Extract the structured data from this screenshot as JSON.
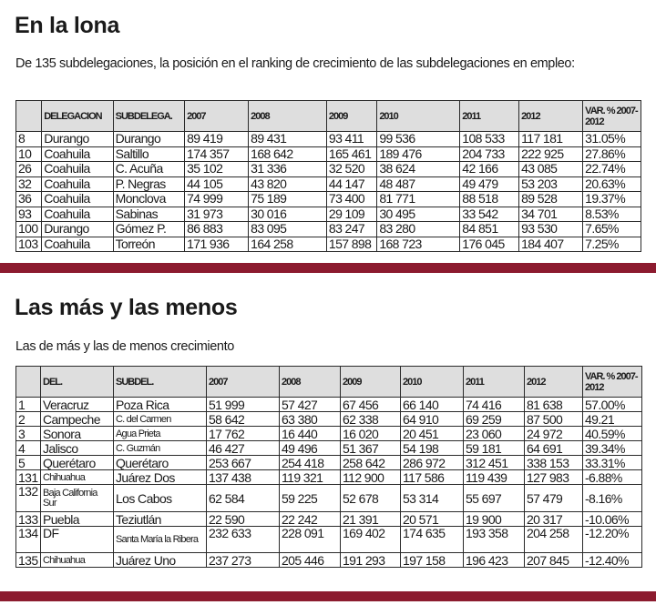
{
  "section1": {
    "title": "En la lona",
    "subtitle": "De 135 subdelegaciones, la posición en el ranking de crecimiento de las subdelegaciones en empleo:",
    "headers": [
      "",
      "DELEGACION",
      "SUBDELEGA.",
      "2007",
      "2008",
      "2009",
      "2010",
      "2011",
      "2012",
      "VAR. % 2007-2012"
    ],
    "rows": [
      [
        "8",
        "Durango",
        "Durango",
        "89 419",
        "89 431",
        "93 411",
        "99 536",
        "108 533",
        "117 181",
        "31.05%"
      ],
      [
        "10",
        "Coahuila",
        "Saltillo",
        "174 357",
        "168 642",
        "165 461",
        "189 476",
        "204 733",
        "222 925",
        "27.86%"
      ],
      [
        "26",
        "Coahuila",
        "C. Acuña",
        "35 102",
        "31 336",
        "32 520",
        "38 624",
        "42 166",
        "43 085",
        "22.74%"
      ],
      [
        "32",
        "Coahuila",
        "P. Negras",
        "44 105",
        "43 820",
        "44 147",
        "48 487",
        "49 479",
        "53 203",
        "20.63%"
      ],
      [
        "36",
        "Coahuila",
        "Monclova",
        "74 999",
        "75 189",
        "73 400",
        "81 771",
        "88 518",
        "89 528",
        "19.37%"
      ],
      [
        "93",
        "Coahuila",
        "Sabinas",
        "31 973",
        "30 016",
        "29 109",
        "30 495",
        "33 542",
        "34 701",
        "8.53%"
      ],
      [
        "100",
        "Durango",
        "Gómez P.",
        "86 883",
        "83 095",
        "83 247",
        "83 280",
        "84 851",
        "93 530",
        "7.65%"
      ],
      [
        "103",
        "Coahuila",
        "Torreón",
        "171 936",
        "164 258",
        "157 898",
        "168 723",
        "176 045",
        "184 407",
        "7.25%"
      ]
    ]
  },
  "section2": {
    "title": "Las más y las menos",
    "subtitle": "Las de más y las de menos crecimiento",
    "headers": [
      "",
      "DEL.",
      "SUBDEL.",
      "2007",
      "2008",
      "2009",
      "2010",
      "2011",
      "2012",
      "VAR. % 2007-2012"
    ],
    "rows": [
      [
        "1",
        "Veracruz",
        "Poza Rica",
        "51 999",
        "57 427",
        "67 456",
        "66 140",
        "74 416",
        "81 638",
        "57.00%"
      ],
      [
        "2",
        "Campeche",
        "C. del Carmen",
        "58 642",
        "63 380",
        "62 338",
        "64 910",
        "69 259",
        "87 500",
        "49.21"
      ],
      [
        "3",
        "Sonora",
        "Agua Prieta",
        "17 762",
        "16 440",
        "16 020",
        "20 451",
        "23 060",
        "24 972",
        "40.59%"
      ],
      [
        "4",
        "Jalisco",
        "C. Guzmán",
        "46 427",
        "49 496",
        "51 367",
        "54 198",
        "59 181",
        "64 691",
        "39.34%"
      ],
      [
        "5",
        "Querétaro",
        "Querétaro",
        "253 667",
        "254 418",
        "258 642",
        "286 972",
        "312 451",
        "338 153",
        "33.31%"
      ],
      [
        "131",
        "Chihuahua",
        "Juárez Dos",
        "137 438",
        "119 321",
        "112 900",
        "117 586",
        "119 439",
        "127 983",
        "-6.88%"
      ],
      [
        "132",
        "Baja California Sur",
        "Los Cabos",
        "62 584",
        "59 225",
        "52 678",
        "53 314",
        "55 697",
        "57 479",
        "-8.16%"
      ],
      [
        "133",
        "Puebla",
        "Teziutlán",
        "22 590",
        "22 242",
        "21 391",
        "20 571",
        "19 900",
        "20 317",
        "-10.06%"
      ],
      [
        "134",
        "DF",
        "Santa María la Ribera",
        "232 633",
        "228 091",
        "169 402",
        "174 635",
        "193 358",
        "204 258",
        "-12.20%"
      ],
      [
        "135",
        "Chihuahua",
        "Juárez Uno",
        "237 273",
        "205 446",
        "191 293",
        "197 158",
        "196 423",
        "207 845",
        "-12.40%"
      ]
    ]
  },
  "colors": {
    "accent_bar": "#8c1b2f",
    "header_bg": "#dedede"
  }
}
